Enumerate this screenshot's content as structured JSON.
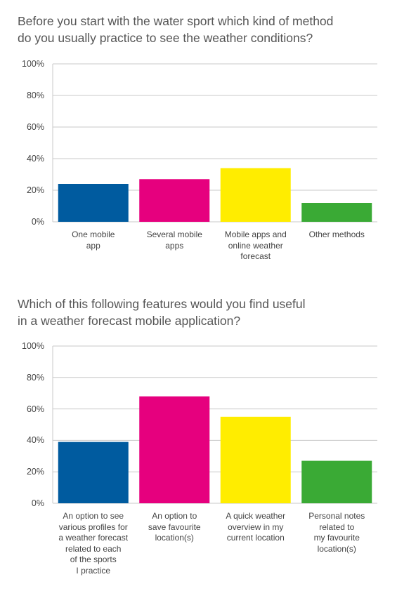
{
  "chart_data": [
    {
      "type": "bar",
      "title": "Before you start with the water sport which kind of method\ndo you usually practice to see the weather conditions?",
      "categories": [
        "One mobile\napp",
        "Several mobile\napps",
        "Mobile apps and\nonline weather\nforecast",
        "Other methods"
      ],
      "values": [
        24,
        27,
        34,
        12
      ],
      "colors": [
        "#005b9f",
        "#e6007e",
        "#ffed00",
        "#3aaa35"
      ],
      "ylim": [
        0,
        100
      ],
      "yticks": [
        {
          "value": 0,
          "label": "0%"
        },
        {
          "value": 20,
          "label": "20%"
        },
        {
          "value": 40,
          "label": "40%"
        },
        {
          "value": 60,
          "label": "60%"
        },
        {
          "value": 80,
          "label": "80%"
        },
        {
          "value": 100,
          "label": "100%"
        }
      ],
      "grid": true
    },
    {
      "type": "bar",
      "title": "Which of this following features would you find useful\nin a weather forecast mobile application?",
      "categories": [
        "An option to see\nvarious profiles for\na weather forecast\nrelated to each\nof the sports\nI practice",
        "An option to\nsave favourite\nlocation(s)",
        "A quick weather\noverview in my\ncurrent location",
        "Personal notes\nrelated to\nmy favourite\nlocation(s)"
      ],
      "values": [
        39,
        68,
        55,
        27
      ],
      "colors": [
        "#005b9f",
        "#e6007e",
        "#ffed00",
        "#3aaa35"
      ],
      "ylim": [
        0,
        100
      ],
      "yticks": [
        {
          "value": 0,
          "label": "0%"
        },
        {
          "value": 20,
          "label": "20%"
        },
        {
          "value": 40,
          "label": "40%"
        },
        {
          "value": 60,
          "label": "60%"
        },
        {
          "value": 80,
          "label": "80%"
        },
        {
          "value": 100,
          "label": "100%"
        }
      ],
      "grid": true
    }
  ]
}
